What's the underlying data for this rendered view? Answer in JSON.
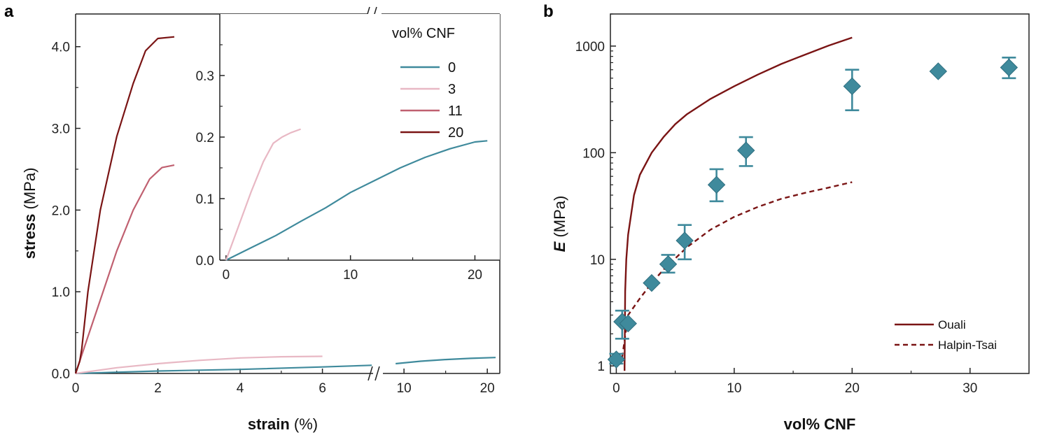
{
  "colors": {
    "teal": "#3f8a9c",
    "light_pink": "#e8b8c4",
    "rose": "#c06070",
    "dark_red": "#7a1414",
    "axis": "#222222"
  },
  "chart_data": [
    {
      "panel": "a",
      "type": "line",
      "xlabel_bold": "strain",
      "xlabel_rest": " (%)",
      "ylabel_bold": "stress",
      "ylabel_rest": " (MPa)",
      "x_break": true,
      "x_ticks_left": [
        "0",
        "2",
        "4",
        "6"
      ],
      "x_ticks_right": [
        "10",
        "20"
      ],
      "y_ticks": [
        "0.0",
        "1.0",
        "2.0",
        "3.0",
        "4.0"
      ],
      "xlim_left": [
        0,
        7.3
      ],
      "xlim_right": [
        7.3,
        21.5
      ],
      "ylim": [
        0,
        4.4
      ],
      "legend_title": "vol% CNF",
      "legend_position": "top-right",
      "series": [
        {
          "name": "0",
          "color": "teal",
          "x": [
            0,
            2,
            4,
            6,
            7.2,
            9,
            12,
            15,
            18,
            21
          ],
          "y": [
            0,
            0.03,
            0.05,
            0.08,
            0.1,
            0.12,
            0.15,
            0.17,
            0.185,
            0.195
          ]
        },
        {
          "name": "3",
          "color": "light_pink",
          "x": [
            0,
            1,
            2,
            3,
            4,
            5,
            6
          ],
          "y": [
            0,
            0.07,
            0.12,
            0.16,
            0.19,
            0.205,
            0.21
          ]
        },
        {
          "name": "11",
          "color": "rose",
          "x": [
            0,
            0.3,
            0.6,
            1.0,
            1.4,
            1.8,
            2.1,
            2.4
          ],
          "y": [
            0,
            0.45,
            0.9,
            1.5,
            2.0,
            2.38,
            2.52,
            2.55
          ]
        },
        {
          "name": "20",
          "color": "dark_red",
          "x": [
            0,
            0.1,
            0.15,
            0.3,
            0.6,
            1.0,
            1.4,
            1.7,
            2.0,
            2.4
          ],
          "y": [
            0,
            0.15,
            0.3,
            1.0,
            2.0,
            2.9,
            3.55,
            3.95,
            4.1,
            4.12
          ]
        }
      ],
      "inset": {
        "x_ticks": [
          "0",
          "10",
          "20"
        ],
        "y_ticks": [
          "0.0",
          "0.1",
          "0.2",
          "0.3"
        ],
        "xlim": [
          -0.5,
          22
        ],
        "ylim": [
          0,
          0.4
        ],
        "series": [
          {
            "name": "0",
            "color": "teal",
            "x": [
              0,
              2,
              4,
              6,
              8,
              10,
              12,
              14,
              16,
              18,
              20,
              21
            ],
            "y": [
              0,
              0.02,
              0.04,
              0.063,
              0.085,
              0.11,
              0.13,
              0.15,
              0.167,
              0.181,
              0.192,
              0.194
            ]
          },
          {
            "name": "3",
            "color": "light_pink",
            "x": [
              0,
              1,
              2,
              3,
              3.8,
              4.5,
              5.2,
              6
            ],
            "y": [
              0,
              0.055,
              0.11,
              0.16,
              0.19,
              0.2,
              0.207,
              0.213
            ]
          }
        ]
      }
    },
    {
      "panel": "b",
      "type": "scatter",
      "xlabel": "vol% CNF",
      "ylabel_italic": "E",
      "ylabel_rest": " (MPa)",
      "x_ticks": [
        "0",
        "10",
        "20",
        "30"
      ],
      "y_ticks": [
        "1",
        "10",
        "100",
        "1000"
      ],
      "y_scale": "log",
      "xlim": [
        -0.5,
        35
      ],
      "ylim": [
        0.85,
        2000
      ],
      "legend_position": "bottom-right",
      "points": {
        "color": "teal",
        "x": [
          0,
          0.5,
          1,
          3,
          4.4,
          5.8,
          8.5,
          11,
          20,
          27.3,
          33.3
        ],
        "y": [
          1.15,
          2.6,
          2.5,
          6,
          9,
          15,
          50,
          105,
          420,
          580,
          630
        ],
        "y_low": [
          1.05,
          1.8,
          null,
          null,
          7.5,
          10,
          35,
          75,
          250,
          null,
          500
        ],
        "y_high": [
          1.3,
          3.3,
          null,
          null,
          11,
          21,
          70,
          140,
          600,
          null,
          780
        ]
      },
      "lines": [
        {
          "name": "Ouali",
          "color": "dark_red",
          "style": "solid",
          "x": [
            0.7,
            0.75,
            0.85,
            1.0,
            1.5,
            2,
            3,
            4,
            5,
            6,
            8,
            10,
            12,
            14,
            16,
            18,
            20
          ],
          "y": [
            0.9,
            5,
            10,
            17,
            40,
            62,
            100,
            140,
            185,
            230,
            320,
            420,
            540,
            680,
            830,
            1010,
            1200
          ]
        },
        {
          "name": "Halpin-Tsai",
          "color": "dark_red",
          "style": "dashed",
          "x": [
            0.5,
            1,
            2,
            3,
            4,
            6,
            8,
            10,
            12,
            14,
            16,
            18,
            20
          ],
          "y": [
            1.2,
            3,
            4.3,
            6,
            8,
            13,
            19,
            25,
            31,
            37,
            42,
            47,
            53
          ]
        }
      ]
    }
  ]
}
